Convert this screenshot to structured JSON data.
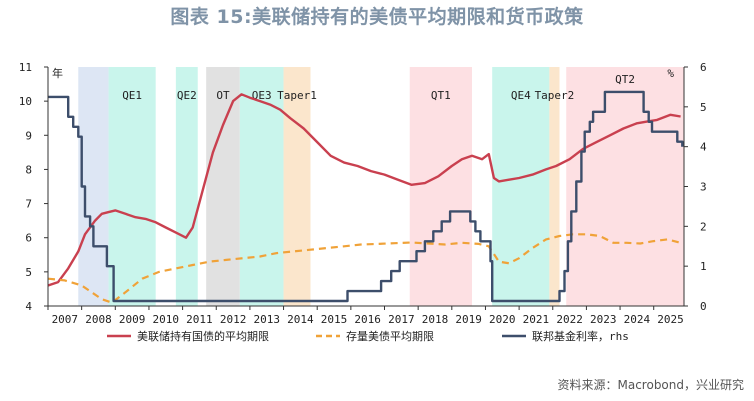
{
  "title": "图表 15:美联储持有的美债平均期限和货币政策",
  "source": "资料来源：Macrobond，兴业研究",
  "chart_data": {
    "type": "line",
    "left_unit": "年",
    "right_unit": "%",
    "ylim_left": [
      4,
      11
    ],
    "ylim_right": [
      0,
      6
    ],
    "y_ticks_left": [
      "4",
      "5",
      "6",
      "7",
      "8",
      "9",
      "10",
      "11"
    ],
    "y_ticks_right": [
      "0",
      "1",
      "2",
      "3",
      "4",
      "5",
      "6"
    ],
    "x_ticks": [
      "2007",
      "2008",
      "2009",
      "2010",
      "2011",
      "2012",
      "2013",
      "2014",
      "2015",
      "2016",
      "2017",
      "2018",
      "2019",
      "2020",
      "2021",
      "2022",
      "2023",
      "2024",
      "2025"
    ],
    "xlim": [
      2007.0,
      2025.9
    ],
    "shaded_periods": [
      {
        "label": "",
        "start": 2007.9,
        "end": 2008.8,
        "color": "#dde6f4"
      },
      {
        "label": "QE1",
        "start": 2008.8,
        "end": 2010.2,
        "color": "#c9f5ec"
      },
      {
        "label": "QE2",
        "start": 2010.8,
        "end": 2011.45,
        "color": "#c9f5ec"
      },
      {
        "label": "OT",
        "start": 2011.7,
        "end": 2012.7,
        "color": "#e1e1e1"
      },
      {
        "label": "QE3",
        "start": 2012.7,
        "end": 2014.0,
        "color": "#c9f5ec"
      },
      {
        "label": "Taper1",
        "start": 2014.0,
        "end": 2014.8,
        "color": "#fbe6cc"
      },
      {
        "label": "QT1",
        "start": 2017.75,
        "end": 2019.6,
        "color": "#fde0e3"
      },
      {
        "label": "QE4",
        "start": 2020.2,
        "end": 2021.9,
        "color": "#c9f5ec"
      },
      {
        "label": "Taper2",
        "start": 2021.9,
        "end": 2022.2,
        "color": "#fbe6cc"
      },
      {
        "label": "QT2",
        "start": 2022.4,
        "end": 2025.9,
        "color": "#fde0e3"
      }
    ],
    "series": [
      {
        "name": "美联储持有国债的平均期限",
        "axis": "left",
        "color": "#c9404f",
        "style": "solid",
        "x": [
          2007.0,
          2007.3,
          2007.6,
          2007.9,
          2008.1,
          2008.4,
          2008.6,
          2008.8,
          2009.0,
          2009.3,
          2009.6,
          2009.9,
          2010.2,
          2010.5,
          2010.8,
          2011.1,
          2011.3,
          2011.6,
          2011.9,
          2012.2,
          2012.5,
          2012.75,
          2013.0,
          2013.3,
          2013.6,
          2013.9,
          2014.2,
          2014.6,
          2015.0,
          2015.4,
          2015.8,
          2016.2,
          2016.6,
          2017.0,
          2017.4,
          2017.8,
          2018.2,
          2018.6,
          2019.0,
          2019.3,
          2019.6,
          2019.9,
          2020.1,
          2020.25,
          2020.4,
          2020.7,
          2021.0,
          2021.4,
          2021.8,
          2022.1,
          2022.5,
          2022.9,
          2023.3,
          2023.7,
          2024.1,
          2024.5,
          2024.8,
          2025.1,
          2025.5,
          2025.8
        ],
        "y": [
          4.6,
          4.7,
          5.1,
          5.6,
          6.1,
          6.5,
          6.7,
          6.75,
          6.8,
          6.7,
          6.6,
          6.55,
          6.45,
          6.3,
          6.15,
          6.0,
          6.3,
          7.4,
          8.5,
          9.3,
          10.0,
          10.2,
          10.1,
          10.0,
          9.9,
          9.75,
          9.5,
          9.2,
          8.8,
          8.4,
          8.2,
          8.1,
          7.95,
          7.85,
          7.7,
          7.55,
          7.6,
          7.8,
          8.1,
          8.3,
          8.4,
          8.3,
          8.45,
          7.75,
          7.65,
          7.7,
          7.75,
          7.85,
          8.0,
          8.1,
          8.3,
          8.6,
          8.8,
          9.0,
          9.2,
          9.35,
          9.4,
          9.45,
          9.6,
          9.55
        ]
      },
      {
        "name": "存量美债平均期限",
        "axis": "left",
        "color": "#f0a238",
        "style": "dashed",
        "x": [
          2007.0,
          2007.5,
          2008.0,
          2008.3,
          2008.6,
          2008.9,
          2009.3,
          2009.8,
          2010.3,
          2010.8,
          2011.3,
          2011.8,
          2012.3,
          2012.8,
          2013.3,
          2013.8,
          2014.3,
          2014.8,
          2015.3,
          2015.8,
          2016.3,
          2016.8,
          2017.3,
          2017.8,
          2018.3,
          2018.8,
          2019.3,
          2019.8,
          2020.1,
          2020.4,
          2020.7,
          2021.0,
          2021.4,
          2021.8,
          2022.2,
          2022.6,
          2023.0,
          2023.4,
          2023.8,
          2024.2,
          2024.6,
          2025.0,
          2025.4,
          2025.8
        ],
        "y": [
          4.8,
          4.75,
          4.6,
          4.4,
          4.2,
          4.1,
          4.4,
          4.8,
          5.0,
          5.1,
          5.2,
          5.3,
          5.35,
          5.4,
          5.45,
          5.55,
          5.6,
          5.65,
          5.7,
          5.75,
          5.8,
          5.82,
          5.84,
          5.86,
          5.83,
          5.8,
          5.85,
          5.82,
          5.75,
          5.3,
          5.25,
          5.4,
          5.7,
          5.95,
          6.05,
          6.1,
          6.1,
          6.05,
          5.85,
          5.85,
          5.83,
          5.9,
          5.95,
          5.85
        ]
      },
      {
        "name": "联邦基金利率，rhs",
        "axis": "right",
        "color": "#3d4e6b",
        "style": "solid",
        "x": [
          2007.0,
          2007.6,
          2007.6,
          2007.75,
          2007.75,
          2007.9,
          2007.9,
          2008.0,
          2008.0,
          2008.1,
          2008.1,
          2008.25,
          2008.25,
          2008.35,
          2008.35,
          2008.75,
          2008.75,
          2008.95,
          2008.95,
          2015.9,
          2015.9,
          2016.9,
          2016.9,
          2017.2,
          2017.2,
          2017.45,
          2017.45,
          2017.95,
          2017.95,
          2018.2,
          2018.2,
          2018.45,
          2018.45,
          2018.7,
          2018.7,
          2018.95,
          2018.95,
          2019.55,
          2019.55,
          2019.7,
          2019.7,
          2019.85,
          2019.85,
          2020.15,
          2020.15,
          2020.2,
          2020.2,
          2022.2,
          2022.2,
          2022.35,
          2022.35,
          2022.45,
          2022.45,
          2022.55,
          2022.55,
          2022.7,
          2022.7,
          2022.85,
          2022.85,
          2022.95,
          2022.95,
          2023.1,
          2023.1,
          2023.2,
          2023.2,
          2023.55,
          2023.55,
          2024.7,
          2024.7,
          2024.85,
          2024.85,
          2024.95,
          2024.95,
          2025.7,
          2025.7,
          2025.85,
          2025.85
        ],
        "y": [
          5.25,
          5.25,
          4.75,
          4.75,
          4.5,
          4.5,
          4.25,
          4.25,
          3.0,
          3.0,
          2.25,
          2.25,
          2.0,
          2.0,
          1.5,
          1.5,
          1.0,
          1.0,
          0.125,
          0.125,
          0.375,
          0.375,
          0.625,
          0.625,
          0.875,
          0.875,
          1.125,
          1.125,
          1.375,
          1.375,
          1.625,
          1.625,
          1.875,
          1.875,
          2.125,
          2.125,
          2.375,
          2.375,
          2.125,
          2.125,
          1.875,
          1.875,
          1.625,
          1.625,
          1.125,
          1.125,
          0.125,
          0.125,
          0.375,
          0.375,
          0.875,
          0.875,
          1.625,
          1.625,
          2.375,
          2.375,
          3.125,
          3.125,
          3.875,
          3.875,
          4.375,
          4.375,
          4.625,
          4.625,
          4.875,
          4.875,
          5.375,
          5.375,
          4.875,
          4.875,
          4.625,
          4.625,
          4.375,
          4.375,
          4.125,
          4.125,
          4.0
        ]
      }
    ],
    "legend_placement": "bottom"
  }
}
